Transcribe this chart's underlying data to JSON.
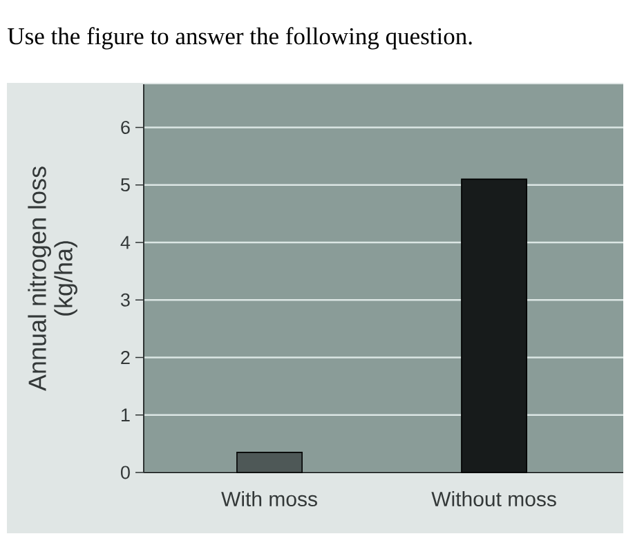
{
  "chart_data": {
    "type": "bar",
    "title": "Use the figure to answer the following question.",
    "ylabel": "Annual nitrogen loss (kg/ha)",
    "categories": [
      "With moss",
      "Without moss"
    ],
    "values": [
      0.35,
      5.1
    ],
    "colors": [
      "#4e5857",
      "#171b1b"
    ],
    "ylim": [
      0,
      6.75
    ],
    "yticks": [
      0,
      1,
      2,
      3,
      4,
      5,
      6
    ],
    "grid": "y"
  }
}
